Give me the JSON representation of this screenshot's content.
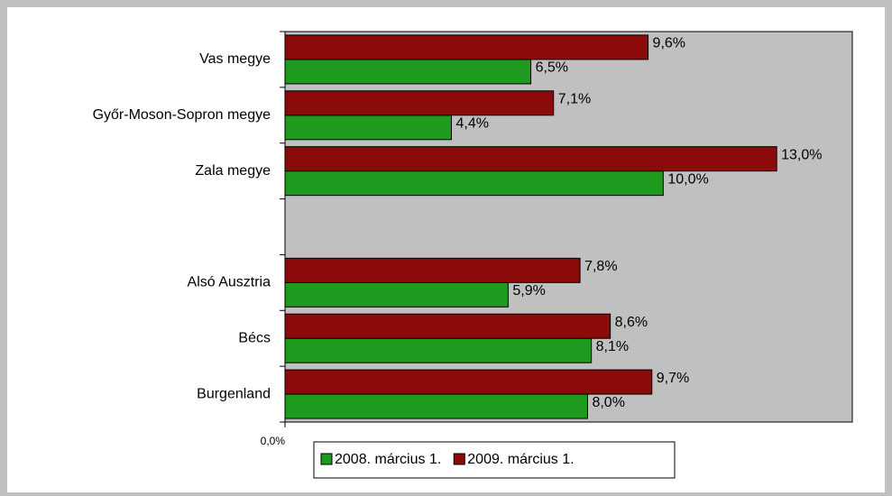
{
  "chart_data": {
    "type": "bar",
    "orientation": "horizontal",
    "categories": [
      "Vas megye",
      "Győr-Moson-Sopron megye",
      "Zala megye",
      null,
      "Alsó Ausztria",
      "Bécs",
      "Burgenland"
    ],
    "series": [
      {
        "name": "2008. március 1.",
        "color": "#1e9a1e",
        "values": [
          6.5,
          4.4,
          10.0,
          null,
          5.9,
          8.1,
          8.0
        ],
        "value_labels": [
          "6,5%",
          "4,4%",
          "10,0%",
          null,
          "5,9%",
          "8,1%",
          "8,0%"
        ]
      },
      {
        "name": "2009. március 1.",
        "color": "#8b0a0a",
        "values": [
          9.6,
          7.1,
          13.0,
          null,
          7.8,
          8.6,
          9.7
        ],
        "value_labels": [
          "9,6%",
          "7,1%",
          "13,0%",
          null,
          "7,8%",
          "8,6%",
          "9,7%"
        ]
      }
    ],
    "xlim": [
      0,
      15
    ],
    "xticks": [
      {
        "value": 0,
        "label": "0,0%"
      }
    ],
    "grid": false,
    "legend": "bottom"
  }
}
